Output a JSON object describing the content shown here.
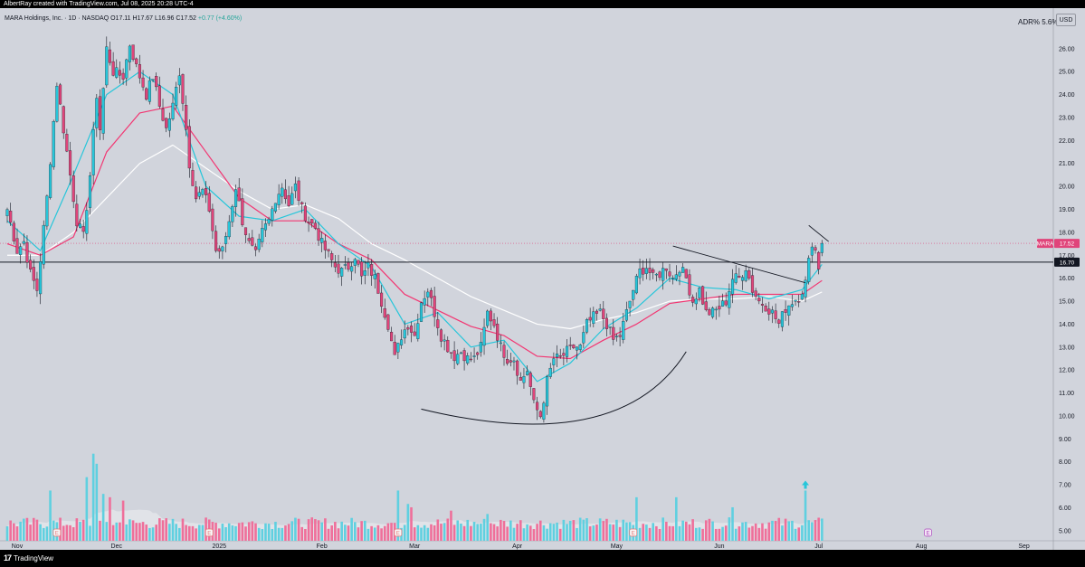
{
  "header": {
    "created_by": "AlbertRay created with TradingView.com, Jul 08, 2025 20:28 UTC-4"
  },
  "legend": {
    "symbol_info": "MARA Holdings, Inc. · 1D · NASDAQ",
    "ohlc": "O17.11 H17.67 L16.96 C17.52",
    "change": "+0.77 (+4.60%)"
  },
  "indicator": {
    "label": "ADR%",
    "value": "5.6%"
  },
  "currency": "USD",
  "footer": {
    "brand": "TradingView",
    "brand_icon": "tradingview-logo-icon"
  },
  "colors": {
    "background": "#d1d4dc",
    "up": "#26c6da",
    "down": "#e0447a",
    "vol_up": "#5fd0e0",
    "vol_down": "#ef6f9a",
    "ema_fast": "#26c6da",
    "ema_mid": "#f23672",
    "ema_slow": "#ffffff",
    "level_line": "#131722"
  },
  "chart_data": {
    "type": "candlestick",
    "symbol": "MARA",
    "y_axis": {
      "min": 4.6,
      "max": 26.9,
      "ticks": [
        "5.00",
        "6.00",
        "7.00",
        "8.00",
        "9.00",
        "10.00",
        "11.00",
        "12.00",
        "13.00",
        "14.00",
        "15.00",
        "16.00",
        "17.00",
        "18.00",
        "19.00",
        "20.00",
        "21.00",
        "22.00",
        "23.00",
        "24.00",
        "25.00",
        "26.00"
      ]
    },
    "x_axis": {
      "labels": [
        {
          "text": "Nov",
          "day": 3
        },
        {
          "text": "Dec",
          "day": 33
        },
        {
          "text": "2025",
          "day": 64
        },
        {
          "text": "Feb",
          "day": 95
        },
        {
          "text": "Mar",
          "day": 123
        },
        {
          "text": "Apr",
          "day": 154
        },
        {
          "text": "May",
          "day": 184
        },
        {
          "text": "Jun",
          "day": 215
        },
        {
          "text": "Jul",
          "day": 245
        },
        {
          "text": "Aug",
          "day": 276
        },
        {
          "text": "Sep",
          "day": 307
        }
      ],
      "start_date": "2024-11-01",
      "end_date": "2025-07-08",
      "axis_end_day": 318
    },
    "price_tags": [
      {
        "label": "MARA",
        "value": "17.52",
        "price": 17.52
      },
      {
        "label": "",
        "value": "16.70",
        "price": 16.7
      }
    ],
    "keypoints": [
      [
        0,
        19.0
      ],
      [
        3,
        17.2
      ],
      [
        5,
        17.6
      ],
      [
        7,
        16.2
      ],
      [
        9,
        15.5
      ],
      [
        12,
        19.5
      ],
      [
        15,
        24.5
      ],
      [
        17,
        22.5
      ],
      [
        19,
        20.5
      ],
      [
        21,
        18.5
      ],
      [
        23,
        17.8
      ],
      [
        25,
        20.5
      ],
      [
        27,
        24.0
      ],
      [
        28,
        22.5
      ],
      [
        30,
        26.0
      ],
      [
        32,
        25.0
      ],
      [
        35,
        24.8
      ],
      [
        37,
        26.2
      ],
      [
        39,
        25.2
      ],
      [
        42,
        24.0
      ],
      [
        44,
        24.8
      ],
      [
        46,
        23.5
      ],
      [
        48,
        22.5
      ],
      [
        50,
        23.5
      ],
      [
        52,
        25.0
      ],
      [
        54,
        22.5
      ],
      [
        55,
        21.0
      ],
      [
        57,
        19.5
      ],
      [
        59,
        19.8
      ],
      [
        61,
        19.0
      ],
      [
        63,
        17.2
      ],
      [
        65,
        17.2
      ],
      [
        67,
        18.5
      ],
      [
        69,
        20.0
      ],
      [
        71,
        18.5
      ],
      [
        73,
        17.5
      ],
      [
        75,
        17.0
      ],
      [
        77,
        18.0
      ],
      [
        79,
        18.5
      ],
      [
        81,
        19.5
      ],
      [
        83,
        20.0
      ],
      [
        85,
        19.2
      ],
      [
        87,
        20.0
      ],
      [
        89,
        19.0
      ],
      [
        91,
        18.5
      ],
      [
        93,
        18.2
      ],
      [
        95,
        17.5
      ],
      [
        97,
        17.0
      ],
      [
        99,
        16.5
      ],
      [
        101,
        16.3
      ],
      [
        103,
        16.5
      ],
      [
        105,
        17.0
      ],
      [
        107,
        16.0
      ],
      [
        109,
        16.5
      ],
      [
        111,
        16.0
      ],
      [
        113,
        15.0
      ],
      [
        115,
        14.0
      ],
      [
        117,
        12.5
      ],
      [
        119,
        13.5
      ],
      [
        121,
        14.0
      ],
      [
        123,
        13.5
      ],
      [
        125,
        15.0
      ],
      [
        127,
        15.5
      ],
      [
        129,
        14.5
      ],
      [
        131,
        13.5
      ],
      [
        133,
        13.0
      ],
      [
        135,
        12.6
      ],
      [
        137,
        12.8
      ],
      [
        139,
        12.5
      ],
      [
        141,
        12.5
      ],
      [
        143,
        13.0
      ],
      [
        145,
        14.5
      ],
      [
        147,
        14.0
      ],
      [
        149,
        13.0
      ],
      [
        151,
        12.5
      ],
      [
        153,
        12.5
      ],
      [
        155,
        11.5
      ],
      [
        157,
        12.0
      ],
      [
        159,
        10.5
      ],
      [
        161,
        10.0
      ],
      [
        163,
        11.5
      ],
      [
        165,
        12.5
      ],
      [
        167,
        12.5
      ],
      [
        169,
        12.8
      ],
      [
        171,
        13.0
      ],
      [
        173,
        13.0
      ],
      [
        175,
        14.0
      ],
      [
        177,
        14.3
      ],
      [
        179,
        14.5
      ],
      [
        181,
        14.0
      ],
      [
        183,
        13.3
      ],
      [
        185,
        13.5
      ],
      [
        187,
        14.5
      ],
      [
        189,
        15.5
      ],
      [
        191,
        16.3
      ],
      [
        193,
        16.5
      ],
      [
        195,
        16.0
      ],
      [
        197,
        16.2
      ],
      [
        199,
        16.5
      ],
      [
        201,
        16.0
      ],
      [
        203,
        16.5
      ],
      [
        205,
        16.0
      ],
      [
        207,
        15.0
      ],
      [
        209,
        15.5
      ],
      [
        211,
        14.5
      ],
      [
        213,
        14.5
      ],
      [
        215,
        14.7
      ],
      [
        217,
        15.0
      ],
      [
        219,
        16.0
      ],
      [
        221,
        16.0
      ],
      [
        223,
        16.5
      ],
      [
        225,
        15.5
      ],
      [
        227,
        15.0
      ],
      [
        229,
        14.8
      ],
      [
        231,
        14.5
      ],
      [
        233,
        14.0
      ],
      [
        235,
        14.7
      ],
      [
        237,
        15.0
      ],
      [
        239,
        15.2
      ],
      [
        241,
        15.8
      ],
      [
        243,
        17.6
      ],
      [
        244,
        17.2
      ],
      [
        245,
        16.5
      ],
      [
        246,
        17.5
      ]
    ],
    "ema_fast_points": [
      [
        0,
        18.5
      ],
      [
        10,
        17.2
      ],
      [
        20,
        20.5
      ],
      [
        30,
        24.0
      ],
      [
        40,
        25.0
      ],
      [
        50,
        24.0
      ],
      [
        60,
        20.0
      ],
      [
        70,
        18.7
      ],
      [
        80,
        18.5
      ],
      [
        90,
        19.0
      ],
      [
        100,
        17.5
      ],
      [
        110,
        16.5
      ],
      [
        120,
        14.0
      ],
      [
        130,
        14.5
      ],
      [
        140,
        13.0
      ],
      [
        150,
        13.3
      ],
      [
        160,
        11.5
      ],
      [
        170,
        12.3
      ],
      [
        180,
        13.8
      ],
      [
        190,
        14.7
      ],
      [
        200,
        16.0
      ],
      [
        210,
        15.6
      ],
      [
        220,
        15.5
      ],
      [
        230,
        15.1
      ],
      [
        240,
        15.5
      ],
      [
        246,
        16.6
      ]
    ],
    "ema_mid_points": [
      [
        0,
        17.5
      ],
      [
        10,
        17.0
      ],
      [
        20,
        17.8
      ],
      [
        30,
        21.5
      ],
      [
        40,
        23.2
      ],
      [
        50,
        23.5
      ],
      [
        60,
        21.5
      ],
      [
        70,
        19.5
      ],
      [
        80,
        18.5
      ],
      [
        90,
        18.5
      ],
      [
        100,
        17.5
      ],
      [
        110,
        16.8
      ],
      [
        120,
        15.3
      ],
      [
        130,
        14.6
      ],
      [
        140,
        13.9
      ],
      [
        150,
        13.5
      ],
      [
        160,
        12.6
      ],
      [
        170,
        12.5
      ],
      [
        180,
        13.3
      ],
      [
        190,
        14.0
      ],
      [
        200,
        14.9
      ],
      [
        210,
        15.1
      ],
      [
        220,
        15.3
      ],
      [
        230,
        15.3
      ],
      [
        240,
        15.3
      ],
      [
        246,
        15.9
      ]
    ],
    "ema_slow_points": [
      [
        0,
        17.0
      ],
      [
        10,
        17.0
      ],
      [
        20,
        18.0
      ],
      [
        30,
        19.5
      ],
      [
        40,
        21.0
      ],
      [
        50,
        21.8
      ],
      [
        60,
        20.8
      ],
      [
        70,
        19.8
      ],
      [
        80,
        19.0
      ],
      [
        90,
        19.2
      ],
      [
        100,
        18.6
      ],
      [
        110,
        17.5
      ],
      [
        120,
        16.8
      ],
      [
        130,
        16.0
      ],
      [
        140,
        15.2
      ],
      [
        150,
        14.6
      ],
      [
        160,
        14.0
      ],
      [
        170,
        13.8
      ],
      [
        180,
        14.2
      ],
      [
        190,
        14.5
      ],
      [
        200,
        15.0
      ],
      [
        210,
        15.1
      ],
      [
        220,
        15.1
      ],
      [
        230,
        15.2
      ],
      [
        240,
        15.0
      ],
      [
        246,
        15.4
      ]
    ],
    "trendlines": [
      {
        "from": [
          201,
          17.4
        ],
        "to": [
          241,
          15.8
        ]
      },
      {
        "from": [
          242,
          18.3
        ],
        "to": [
          248,
          17.6
        ]
      }
    ],
    "cup_curve": {
      "from": [
        125,
        10.3
      ],
      "control": [
        185,
        8.2
      ],
      "to": [
        205,
        12.8
      ]
    },
    "volume": {
      "seed": 7,
      "spikes": [
        [
          26,
          2.6
        ],
        [
          27,
          2.3
        ],
        [
          24,
          1.9
        ],
        [
          13,
          1.5
        ],
        [
          29,
          1.4
        ],
        [
          31,
          1.3
        ],
        [
          35,
          1.2
        ],
        [
          118,
          1.5
        ],
        [
          121,
          1.1
        ],
        [
          122,
          1.0
        ],
        [
          190,
          1.3
        ],
        [
          202,
          1.3
        ],
        [
          219,
          1.0
        ],
        [
          241,
          1.5
        ],
        [
          134,
          0.9
        ],
        [
          145,
          0.8
        ]
      ],
      "base_millions": 18,
      "marker_arrow_day": 241
    },
    "event_markers": [
      {
        "kind": "earnings",
        "label": "E",
        "day": 15
      },
      {
        "kind": "earnings",
        "label": "E",
        "day": 61
      },
      {
        "kind": "earnings",
        "label": "E",
        "day": 118
      },
      {
        "kind": "earnings",
        "label": "E",
        "day": 189
      },
      {
        "kind": "event",
        "label": "E",
        "day": 278
      }
    ]
  }
}
